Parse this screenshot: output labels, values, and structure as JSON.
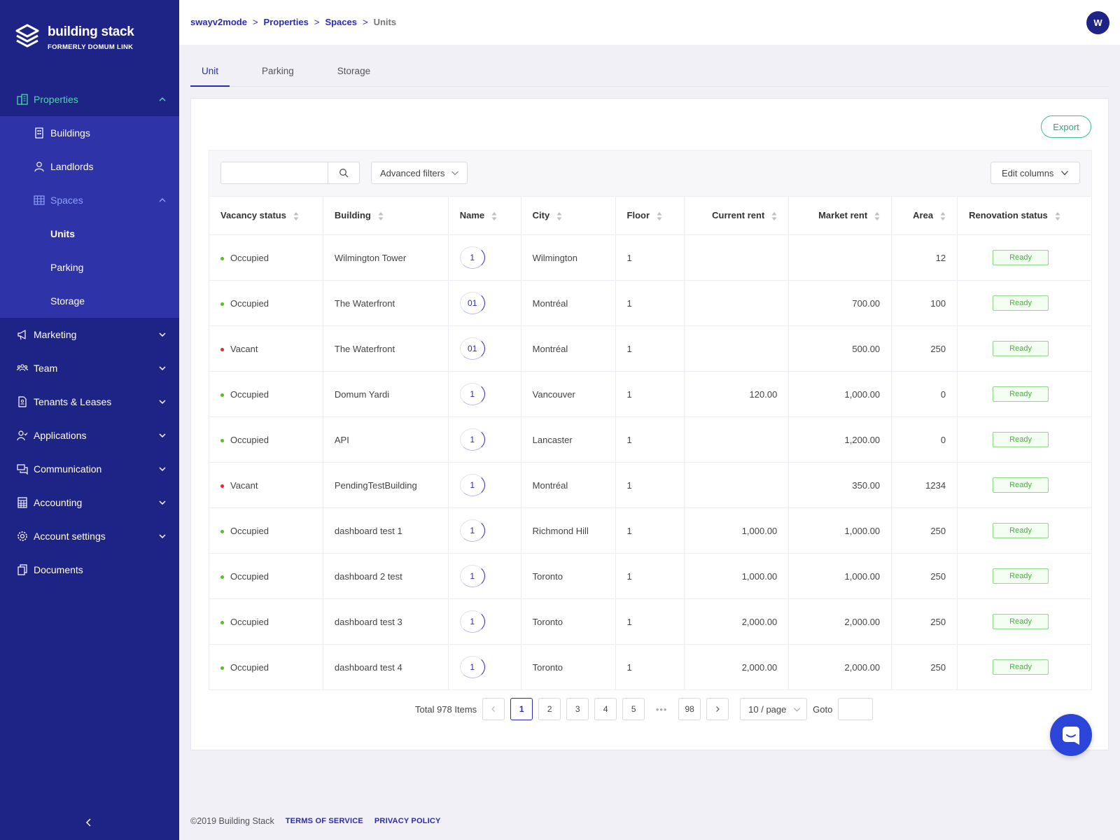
{
  "brand": {
    "title": "building stack",
    "subtitle": "FORMERLY DOMUM LINK"
  },
  "sidebar": {
    "properties": {
      "label": "Properties",
      "icon": "buildings-icon"
    },
    "properties_sub": [
      {
        "label": "Buildings",
        "icon": "building-icon"
      },
      {
        "label": "Landlords",
        "icon": "user-icon"
      },
      {
        "label": "Spaces",
        "icon": "grid-icon"
      }
    ],
    "spaces_sub": [
      "Units",
      "Parking",
      "Storage"
    ],
    "items": [
      {
        "label": "Marketing",
        "icon": "megaphone-icon"
      },
      {
        "label": "Team",
        "icon": "team-icon"
      },
      {
        "label": "Tenants & Leases",
        "icon": "document-icon"
      },
      {
        "label": "Applications",
        "icon": "user-check-icon"
      },
      {
        "label": "Communication",
        "icon": "chat-icon"
      },
      {
        "label": "Accounting",
        "icon": "calculator-icon"
      },
      {
        "label": "Account settings",
        "icon": "gear-icon"
      },
      {
        "label": "Documents",
        "icon": "copy-icon"
      }
    ]
  },
  "header": {
    "breadcrumb": [
      "swayv2mode",
      "Properties",
      "Spaces",
      "Units"
    ],
    "separator": ">",
    "avatar": "W"
  },
  "tabs": [
    "Unit",
    "Parking",
    "Storage"
  ],
  "toolbar": {
    "export": "Export",
    "search_placeholder": "",
    "advanced_filters": "Advanced filters",
    "edit_columns": "Edit columns"
  },
  "table": {
    "columns": [
      "Vacancy status",
      "Building",
      "Name",
      "City",
      "Floor",
      "Current rent",
      "Market rent",
      "Area",
      "Renovation status"
    ],
    "colors": {
      "occupied": "#52c41a",
      "vacant": "#f5222d"
    },
    "rows": [
      {
        "status": "Occupied",
        "building": "Wilmington Tower",
        "name": "1",
        "city": "Wilmington",
        "floor": "1",
        "current_rent": "",
        "market_rent": "",
        "area": "12",
        "renovation": "Ready"
      },
      {
        "status": "Occupied",
        "building": "The Waterfront",
        "name": "01",
        "city": "Montréal",
        "floor": "1",
        "current_rent": "",
        "market_rent": "700.00",
        "area": "100",
        "renovation": "Ready"
      },
      {
        "status": "Vacant",
        "building": "The Waterfront",
        "name": "01",
        "city": "Montréal",
        "floor": "1",
        "current_rent": "",
        "market_rent": "500.00",
        "area": "250",
        "renovation": "Ready"
      },
      {
        "status": "Occupied",
        "building": "Domum Yardi",
        "name": "1",
        "city": "Vancouver",
        "floor": "1",
        "current_rent": "120.00",
        "market_rent": "1,000.00",
        "area": "0",
        "renovation": "Ready"
      },
      {
        "status": "Occupied",
        "building": "API",
        "name": "1",
        "city": "Lancaster",
        "floor": "1",
        "current_rent": "",
        "market_rent": "1,200.00",
        "area": "0",
        "renovation": "Ready"
      },
      {
        "status": "Vacant",
        "building": "PendingTestBuilding",
        "name": "1",
        "city": "Montréal",
        "floor": "1",
        "current_rent": "",
        "market_rent": "350.00",
        "area": "1234",
        "renovation": "Ready"
      },
      {
        "status": "Occupied",
        "building": "dashboard test 1",
        "name": "1",
        "city": "Richmond Hill",
        "floor": "1",
        "current_rent": "1,000.00",
        "market_rent": "1,000.00",
        "area": "250",
        "renovation": "Ready"
      },
      {
        "status": "Occupied",
        "building": "dashboard 2 test",
        "name": "1",
        "city": "Toronto",
        "floor": "1",
        "current_rent": "1,000.00",
        "market_rent": "1,000.00",
        "area": "250",
        "renovation": "Ready"
      },
      {
        "status": "Occupied",
        "building": "dashboard test 3",
        "name": "1",
        "city": "Toronto",
        "floor": "1",
        "current_rent": "2,000.00",
        "market_rent": "2,000.00",
        "area": "250",
        "renovation": "Ready"
      },
      {
        "status": "Occupied",
        "building": "dashboard test 4",
        "name": "1",
        "city": "Toronto",
        "floor": "1",
        "current_rent": "2,000.00",
        "market_rent": "2,000.00",
        "area": "250",
        "renovation": "Ready"
      }
    ]
  },
  "pagination": {
    "total": "Total 978 Items",
    "pages": [
      "1",
      "2",
      "3",
      "4",
      "5"
    ],
    "ellipsis": "•••",
    "last": "98",
    "current": "1",
    "page_size": "10 / page",
    "goto": "Goto"
  },
  "footer": {
    "copyright": "©2019 Building Stack",
    "terms": "TERMS OF SERVICE",
    "privacy": "PRIVACY POLICY"
  },
  "colors": {
    "sidebar_bg": "#1e2386",
    "submenu_bg": "#2f33a8",
    "accent": "#2b2bb8",
    "active_green": "#4ad8a8",
    "chat_button": "#2b45d9"
  }
}
